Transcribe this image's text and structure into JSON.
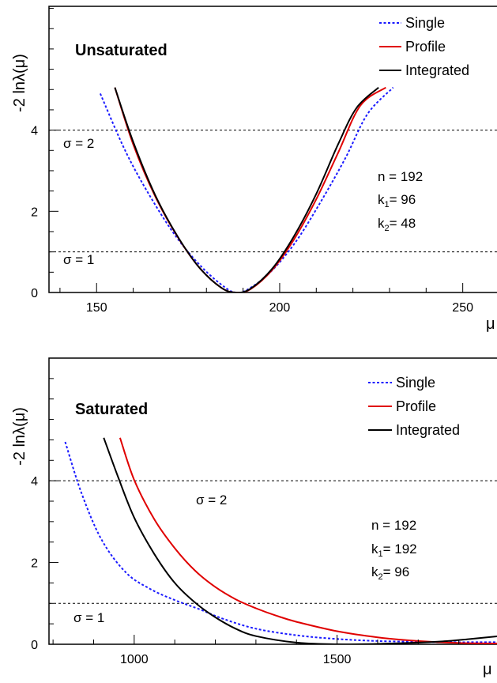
{
  "chart_data": [
    {
      "type": "line",
      "title": "Unsaturated",
      "xlabel": "μ",
      "ylabel": "-2 lnλ(μ)",
      "xlim": [
        137,
        260
      ],
      "ylim": [
        0,
        7.05
      ],
      "xticks": [
        150,
        200,
        250
      ],
      "yticks": [
        0,
        2,
        4
      ],
      "grid": false,
      "legend_position": "top-right",
      "reference_lines": [
        {
          "y": 1,
          "label": "σ = 1"
        },
        {
          "y": 4,
          "label": "σ = 2"
        }
      ],
      "annotations": {
        "n": "n = 192",
        "k1_value": "= 96",
        "k2_value": "= 48"
      },
      "series": [
        {
          "name": "Single",
          "style": "dotted",
          "color": "#1a1aff",
          "x": [
            151,
            158,
            165,
            172,
            179,
            185,
            188,
            191,
            197,
            204,
            211,
            218,
            224,
            231
          ],
          "y": [
            4.9,
            3.46,
            2.31,
            1.34,
            0.6,
            0.13,
            0.0,
            0.06,
            0.46,
            1.2,
            2.2,
            3.32,
            4.4,
            5.05
          ]
        },
        {
          "name": "Profile",
          "style": "solid",
          "color": "#e00000",
          "x": [
            155,
            160,
            166,
            172,
            178,
            184,
            188,
            192,
            198,
            204,
            210,
            216,
            222,
            229
          ],
          "y": [
            5.05,
            3.65,
            2.37,
            1.39,
            0.62,
            0.12,
            0.0,
            0.08,
            0.56,
            1.32,
            2.3,
            3.45,
            4.6,
            5.05
          ]
        },
        {
          "name": "Integrated",
          "style": "solid",
          "color": "#000000",
          "x": [
            155,
            160,
            166,
            172,
            178,
            184,
            188,
            192,
            198,
            204,
            210,
            216,
            221,
            227
          ],
          "y": [
            5.05,
            3.71,
            2.4,
            1.4,
            0.62,
            0.12,
            0.0,
            0.09,
            0.59,
            1.4,
            2.43,
            3.66,
            4.55,
            5.05
          ]
        }
      ]
    },
    {
      "type": "line",
      "title": "Saturated",
      "xlabel": "μ",
      "ylabel": "-2 lnλ(μ)",
      "xlim": [
        790,
        1900
      ],
      "ylim": [
        0,
        7.0
      ],
      "xticks": [
        1000,
        1500
      ],
      "yticks": [
        0,
        2,
        4
      ],
      "grid": false,
      "legend_position": "top-right",
      "reference_lines": [
        {
          "y": 1,
          "label": "σ = 1"
        },
        {
          "y": 4,
          "label": "σ = 2"
        }
      ],
      "annotations": {
        "n": "n = 192",
        "k1_value": "= 192",
        "k2_value": "= 96"
      },
      "series": [
        {
          "name": "Single",
          "style": "dotted",
          "color": "#1a1aff",
          "x": [
            830,
            870,
            920,
            980,
            1040,
            1100,
            1160,
            1220,
            1300,
            1400,
            1500,
            1600,
            1700,
            1780,
            1850,
            1900
          ],
          "y": [
            4.95,
            3.7,
            2.55,
            1.75,
            1.35,
            1.08,
            0.86,
            0.62,
            0.38,
            0.22,
            0.13,
            0.08,
            0.06,
            0.05,
            0.05,
            0.05
          ]
        },
        {
          "name": "Profile",
          "style": "solid",
          "color": "#e00000",
          "x": [
            965,
            1000,
            1050,
            1100,
            1150,
            1200,
            1250,
            1300,
            1350,
            1400,
            1500,
            1600,
            1700,
            1800,
            1900
          ],
          "y": [
            5.05,
            4.02,
            3.05,
            2.35,
            1.8,
            1.4,
            1.1,
            0.88,
            0.7,
            0.55,
            0.32,
            0.17,
            0.08,
            0.03,
            0.02
          ]
        },
        {
          "name": "Integrated",
          "style": "solid",
          "color": "#000000",
          "x": [
            925,
            960,
            1000,
            1050,
            1100,
            1150,
            1200,
            1250,
            1300,
            1400,
            1500,
            1600,
            1700,
            1760,
            1820,
            1900
          ],
          "y": [
            5.05,
            4.1,
            3.1,
            2.2,
            1.5,
            1.02,
            0.66,
            0.38,
            0.2,
            0.04,
            0.0,
            0.01,
            0.04,
            0.07,
            0.12,
            0.2
          ]
        }
      ]
    }
  ]
}
